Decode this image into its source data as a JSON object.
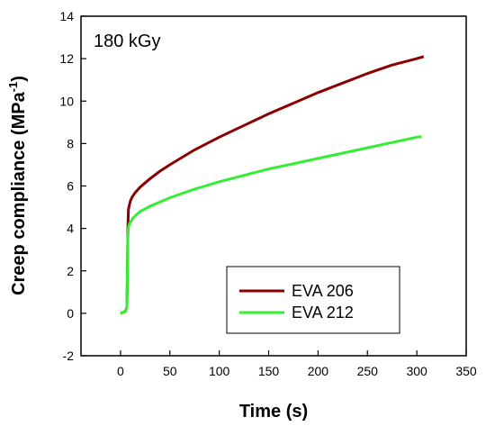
{
  "chart_data": {
    "type": "line",
    "annotation": "180 kGy",
    "xlabel": "Time (s)",
    "ylabel_main": "Creep compliance (MPa",
    "ylabel_sup": "-1",
    "ylabel_end": ")",
    "xlim": [
      -40,
      350
    ],
    "ylim": [
      -2,
      14
    ],
    "xticks": [
      0,
      50,
      100,
      150,
      200,
      250,
      300,
      350
    ],
    "yticks": [
      -2,
      0,
      2,
      4,
      6,
      8,
      10,
      12,
      14
    ],
    "legend_position": "bottom-right",
    "series": [
      {
        "name": "EVA 206",
        "color": "#8b0000",
        "x": [
          0,
          3,
          5,
          6.5,
          7,
          7.5,
          8,
          9,
          10,
          12,
          15,
          20,
          30,
          40,
          50,
          75,
          100,
          125,
          150,
          175,
          200,
          225,
          250,
          275,
          300,
          307
        ],
        "y": [
          0.0,
          0.05,
          0.1,
          0.3,
          2.0,
          4.0,
          4.9,
          5.1,
          5.3,
          5.5,
          5.7,
          5.95,
          6.35,
          6.7,
          7.0,
          7.7,
          8.3,
          8.85,
          9.4,
          9.9,
          10.4,
          10.85,
          11.3,
          11.7,
          12.0,
          12.1
        ]
      },
      {
        "name": "EVA 212",
        "color": "#33ee33",
        "x": [
          0,
          3,
          5,
          6.5,
          7,
          7.5,
          8,
          9,
          10,
          12,
          15,
          20,
          30,
          40,
          50,
          75,
          100,
          125,
          150,
          175,
          200,
          225,
          250,
          275,
          300,
          305
        ],
        "y": [
          0.0,
          0.05,
          0.08,
          0.3,
          2.0,
          3.6,
          4.05,
          4.2,
          4.3,
          4.45,
          4.6,
          4.8,
          5.05,
          5.25,
          5.45,
          5.85,
          6.2,
          6.5,
          6.8,
          7.05,
          7.3,
          7.55,
          7.8,
          8.05,
          8.3,
          8.32
        ]
      }
    ]
  }
}
